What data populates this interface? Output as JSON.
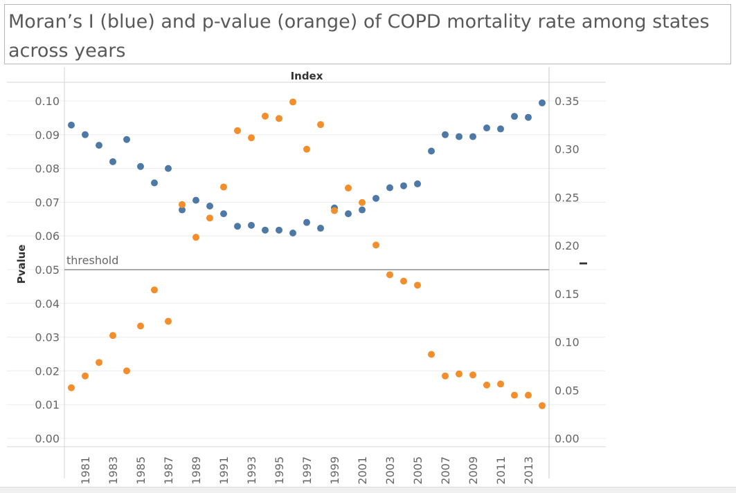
{
  "title": "Moran’s I (blue) and p-value (orange) of COPD mortality rate among states across years",
  "colors": {
    "moran": "#4e79a7",
    "pvalue": "#f28e2b",
    "threshold": "#a8a8a8",
    "grid": "#ececec"
  },
  "chart_data": {
    "type": "scatter",
    "title": "Moran’s I (blue) and p-value (orange) of COPD mortality rate among states across years",
    "header_label": "Index",
    "ylabel": "Pvalue",
    "ylabel_right": "I",
    "ylim": [
      0,
      0.1
    ],
    "ylim_right": [
      0,
      0.35
    ],
    "yticks": [
      "0.10",
      "0.09",
      "0.08",
      "0.07",
      "0.06",
      "0.05",
      "0.04",
      "0.03",
      "0.02",
      "0.01",
      "0.00"
    ],
    "yticks_right": [
      "0.35",
      "0.30",
      "0.25",
      "0.20",
      "0.15",
      "0.10",
      "0.05",
      "0.00"
    ],
    "xtick_labels": [
      "1981",
      "1983",
      "1985",
      "1987",
      "1989",
      "1991",
      "1993",
      "1995",
      "1997",
      "1999",
      "2001",
      "2003",
      "2005",
      "2007",
      "2009",
      "2011",
      "2013"
    ],
    "threshold": {
      "label": "threshold",
      "value": 0.05
    },
    "grid": true,
    "x": [
      1980,
      1981,
      1982,
      1983,
      1984,
      1985,
      1986,
      1987,
      1988,
      1989,
      1990,
      1991,
      1992,
      1993,
      1994,
      1995,
      1996,
      1997,
      1998,
      1999,
      2000,
      2001,
      2002,
      2003,
      2004,
      2005,
      2006,
      2007,
      2008,
      2009,
      2010,
      2011,
      2012,
      2013,
      2014
    ],
    "series": [
      {
        "axis": "right",
        "values": [
          0.325,
          0.315,
          0.304,
          0.287,
          0.31,
          0.282,
          0.265,
          0.28,
          0.237,
          0.247,
          0.241,
          0.233,
          0.22,
          0.221,
          0.216,
          0.216,
          0.213,
          0.224,
          0.218,
          0.239,
          0.233,
          0.237,
          0.249,
          0.26,
          0.262,
          0.264,
          0.298,
          0.315,
          0.313,
          0.313,
          0.322,
          0.321,
          0.334,
          0.333,
          0.348
        ]
      },
      {
        "axis": "left",
        "values": [
          0.015,
          0.0185,
          0.0225,
          0.0305,
          0.02,
          0.0333,
          0.044,
          0.0347,
          0.0693,
          0.0596,
          0.0653,
          0.0745,
          0.0912,
          0.0891,
          0.0955,
          0.0948,
          0.0997,
          0.0857,
          0.093,
          0.0675,
          0.0742,
          0.0699,
          0.0573,
          0.0485,
          0.0466,
          0.0454,
          0.0249,
          0.0185,
          0.0191,
          0.0188,
          0.0158,
          0.0161,
          0.0128,
          0.0128,
          0.0097
        ]
      }
    ]
  }
}
